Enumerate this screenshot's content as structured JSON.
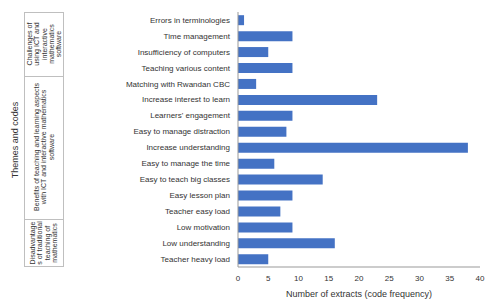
{
  "chart_data": {
    "type": "bar",
    "orientation": "horizontal",
    "xlabel": "Number of extracts (code frequency)",
    "ylabel": "Themes and codes",
    "categories": [
      "Errors in terminologies",
      "Time management",
      "Insufficiency of computers",
      "Teaching various content",
      "Matching with Rwandan CBC",
      "Increase interest to learn",
      "Learners' engagement",
      "Easy to manage distraction",
      "Increase understanding",
      "Easy to manage the time",
      "Easy to teach big classes",
      "Easy lesson plan",
      "Teacher easy load",
      "Low motivation",
      "Low understanding",
      "Teacher heavy load"
    ],
    "values": [
      1,
      9,
      5,
      9,
      3,
      23,
      9,
      8,
      38,
      6,
      14,
      9,
      7,
      9,
      16,
      5
    ],
    "color": "#4472c4",
    "xlim": [
      0,
      40
    ],
    "xticks": [
      0,
      5,
      10,
      15,
      20,
      25,
      30,
      35,
      40
    ],
    "grid": false,
    "groups": [
      {
        "label": "Challenges of using ICT and interactive mathematics software",
        "categories": [
          "Errors in terminologies",
          "Time management",
          "Insufficiency of computers",
          "Teaching various content"
        ]
      },
      {
        "label": "Benefits of teaching and learning aspects with ICT and interactive mathematics software",
        "categories": [
          "Matching with Rwandan CBC",
          "Increase interest to learn",
          "Learners' engagement",
          "Easy to manage distraction",
          "Increase understanding",
          "Easy to manage the time",
          "Easy to teach big classes",
          "Easy lesson plan",
          "Teacher easy load"
        ]
      },
      {
        "label": "Disadvantages of traditional teaching of mathematics",
        "categories": [
          "Low motivation",
          "Low understanding",
          "Teacher heavy load"
        ]
      }
    ]
  }
}
